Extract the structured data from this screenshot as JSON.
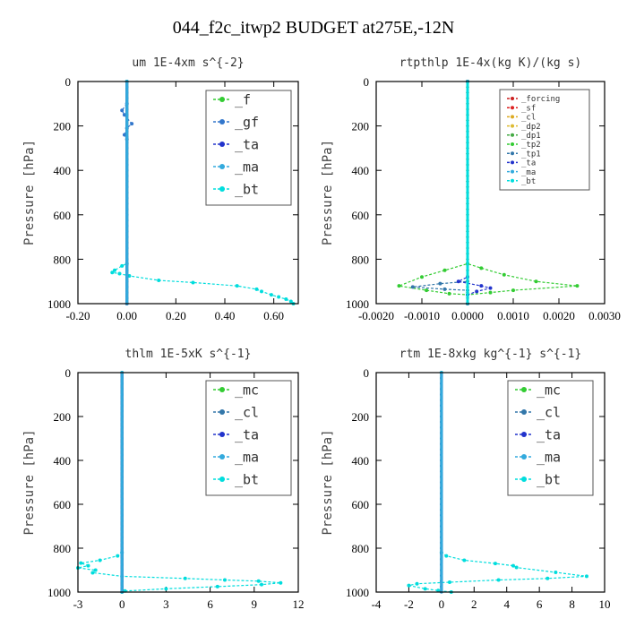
{
  "figure_title": "044_f2c_itwp2  BUDGET at275E,-12N",
  "chart_data": [
    {
      "type": "line",
      "title": "um   1E-4xm s^{-2}",
      "ylabel": "Pressure [hPa]",
      "xlim": [
        -0.2,
        0.7
      ],
      "ylim": [
        0,
        1000
      ],
      "y_inverted": true,
      "xticks": [
        -0.2,
        0.0,
        0.2,
        0.4,
        0.6
      ],
      "xtick_labels": [
        "-0.20",
        "0.00",
        "0.20",
        "0.40",
        "0.60"
      ],
      "yticks": [
        0,
        200,
        400,
        600,
        800,
        1000
      ],
      "legend_position": "top-right",
      "series": [
        {
          "name": "_f",
          "color": "#33cc33",
          "values": [
            [
              0,
              0
            ],
            [
              0,
              1000
            ]
          ]
        },
        {
          "name": "_gf",
          "color": "#3377cc",
          "values": [
            [
              0,
              0
            ],
            [
              0,
              100
            ],
            [
              -0.02,
              130
            ],
            [
              -0.01,
              150
            ],
            [
              0.02,
              190
            ],
            [
              0,
              210
            ],
            [
              -0.01,
              240
            ],
            [
              0,
              260
            ],
            [
              0,
              1000
            ]
          ]
        },
        {
          "name": "_ta",
          "color": "#2233cc",
          "values": [
            [
              0,
              0
            ],
            [
              0,
              1000
            ]
          ]
        },
        {
          "name": "_ma",
          "color": "#33aadd",
          "values": [
            [
              0,
              0
            ],
            [
              0,
              1000
            ]
          ]
        },
        {
          "name": "_bt",
          "color": "#00dddd",
          "values": [
            [
              0,
              0
            ],
            [
              0,
              820
            ],
            [
              -0.02,
              830
            ],
            [
              -0.05,
              850
            ],
            [
              -0.06,
              860
            ],
            [
              -0.03,
              865
            ],
            [
              0.01,
              875
            ],
            [
              0.13,
              895
            ],
            [
              0.27,
              905
            ],
            [
              0.45,
              920
            ],
            [
              0.53,
              935
            ],
            [
              0.55,
              945
            ],
            [
              0.59,
              960
            ],
            [
              0.62,
              970
            ],
            [
              0.65,
              980
            ],
            [
              0.67,
              990
            ],
            [
              0.68,
              1000
            ]
          ]
        }
      ]
    },
    {
      "type": "line",
      "title": "rtpthlp   1E-4x(kg K)/(kg s)",
      "ylabel": "Pressure [hPa]",
      "xlim": [
        -0.002,
        0.003
      ],
      "ylim": [
        0,
        1000
      ],
      "y_inverted": true,
      "xticks": [
        -0.002,
        -0.001,
        0.0,
        0.001,
        0.002,
        0.003
      ],
      "xtick_labels": [
        "-0.0020",
        "-0.0010",
        "0.0000",
        "0.0010",
        "0.0020",
        "0.0030"
      ],
      "yticks": [
        0,
        200,
        400,
        600,
        800,
        1000
      ],
      "legend_position": "top-right",
      "series": [
        {
          "name": "_forcing",
          "color": "#cc2222",
          "values": [
            [
              0,
              0
            ],
            [
              0,
              1000
            ]
          ]
        },
        {
          "name": "_sf",
          "color": "#dd2222",
          "values": [
            [
              0,
              0
            ],
            [
              0,
              1000
            ]
          ]
        },
        {
          "name": "_cl",
          "color": "#ddaa22",
          "values": [
            [
              0,
              0
            ],
            [
              0,
              1000
            ]
          ]
        },
        {
          "name": "_dp2",
          "color": "#ddbb33",
          "values": [
            [
              0,
              0
            ],
            [
              0,
              1000
            ]
          ]
        },
        {
          "name": "_dp1",
          "color": "#44aa44",
          "values": [
            [
              0,
              0
            ],
            [
              0,
              1000
            ]
          ]
        },
        {
          "name": "_tp2",
          "color": "#33cc33",
          "values": [
            [
              0,
              0
            ],
            [
              0,
              820
            ],
            [
              -0.0005,
              850
            ],
            [
              -0.001,
              880
            ],
            [
              -0.0015,
              920
            ],
            [
              -0.0009,
              940
            ],
            [
              -0.0004,
              955
            ],
            [
              0,
              960
            ],
            [
              0.0005,
              950
            ],
            [
              0.001,
              940
            ],
            [
              0.0024,
              920
            ],
            [
              0.0015,
              900
            ],
            [
              0.0008,
              870
            ],
            [
              0.0003,
              840
            ],
            [
              0,
              820
            ]
          ]
        },
        {
          "name": "_tp1",
          "color": "#3377aa",
          "values": [
            [
              0,
              0
            ],
            [
              0,
              900
            ],
            [
              -0.0006,
              910
            ],
            [
              -0.0012,
              925
            ],
            [
              -0.0005,
              935
            ],
            [
              0,
              940
            ],
            [
              0,
              1000
            ]
          ]
        },
        {
          "name": "_ta",
          "color": "#2233cc",
          "values": [
            [
              0,
              0
            ],
            [
              0,
              880
            ],
            [
              -0.0002,
              900
            ],
            [
              0.0003,
              920
            ],
            [
              0.0005,
              930
            ],
            [
              0.0002,
              945
            ],
            [
              0,
              960
            ],
            [
              0,
              1000
            ]
          ]
        },
        {
          "name": "_ma",
          "color": "#33aadd",
          "values": [
            [
              0,
              0
            ],
            [
              0,
              1000
            ]
          ]
        },
        {
          "name": "_bt",
          "color": "#00dddd",
          "values": [
            [
              0,
              0
            ],
            [
              0,
              1000
            ]
          ]
        }
      ]
    },
    {
      "type": "line",
      "title": "thlm   1E-5xK s^{-1}",
      "ylabel": "Pressure [hPa]",
      "xlim": [
        -3,
        12
      ],
      "ylim": [
        0,
        1000
      ],
      "y_inverted": true,
      "xticks": [
        -3,
        0,
        3,
        6,
        9,
        12
      ],
      "xtick_labels": [
        "-3",
        "0",
        "3",
        "6",
        "9",
        "12"
      ],
      "yticks": [
        0,
        200,
        400,
        600,
        800,
        1000
      ],
      "legend_position": "top-right",
      "series": [
        {
          "name": "_mc",
          "color": "#33cc33",
          "values": [
            [
              0,
              0
            ],
            [
              0,
              1000
            ]
          ]
        },
        {
          "name": "_cl",
          "color": "#3377aa",
          "values": [
            [
              0,
              0
            ],
            [
              0,
              1000
            ]
          ]
        },
        {
          "name": "_ta",
          "color": "#2233cc",
          "values": [
            [
              0,
              0
            ],
            [
              0,
              1000
            ]
          ]
        },
        {
          "name": "_ma",
          "color": "#33aadd",
          "values": [
            [
              0,
              0
            ],
            [
              0,
              1000
            ]
          ]
        },
        {
          "name": "_bt",
          "color": "#00dddd",
          "values": [
            [
              0,
              0
            ],
            [
              0,
              820
            ],
            [
              -0.3,
              835
            ],
            [
              -1.5,
              855
            ],
            [
              -2.8,
              868
            ],
            [
              -2.3,
              880
            ],
            [
              -3,
              890
            ],
            [
              -1.8,
              900
            ],
            [
              -2,
              912
            ],
            [
              0,
              928
            ],
            [
              4.3,
              938
            ],
            [
              7,
              945
            ],
            [
              9.3,
              950
            ],
            [
              10.8,
              958
            ],
            [
              9.5,
              966
            ],
            [
              6.5,
              975
            ],
            [
              3,
              985
            ],
            [
              0.2,
              995
            ],
            [
              0,
              1000
            ]
          ]
        }
      ]
    },
    {
      "type": "line",
      "title": "rtm   1E-8xkg kg^{-1} s^{-1}",
      "ylabel": "Pressure [hPa]",
      "xlim": [
        -4,
        10
      ],
      "ylim": [
        0,
        1000
      ],
      "y_inverted": true,
      "xticks": [
        -4,
        -2,
        0,
        2,
        4,
        6,
        8,
        10
      ],
      "xtick_labels": [
        "-4",
        "-2",
        "0",
        "2",
        "4",
        "6",
        "8",
        "10"
      ],
      "yticks": [
        0,
        200,
        400,
        600,
        800,
        1000
      ],
      "legend_position": "top-right",
      "series": [
        {
          "name": "_mc",
          "color": "#33cc33",
          "values": [
            [
              0,
              0
            ],
            [
              0,
              1000
            ]
          ]
        },
        {
          "name": "_cl",
          "color": "#3377aa",
          "values": [
            [
              0,
              0
            ],
            [
              0,
              1000
            ]
          ]
        },
        {
          "name": "_ta",
          "color": "#2233cc",
          "values": [
            [
              0,
              0
            ],
            [
              0,
              1000
            ]
          ]
        },
        {
          "name": "_ma",
          "color": "#33aadd",
          "values": [
            [
              0,
              0
            ],
            [
              0,
              1000
            ]
          ]
        },
        {
          "name": "_bt",
          "color": "#00dddd",
          "values": [
            [
              0,
              0
            ],
            [
              0,
              820
            ],
            [
              0.3,
              835
            ],
            [
              1.4,
              855
            ],
            [
              3.3,
              870
            ],
            [
              4.4,
              880
            ],
            [
              4.6,
              888
            ],
            [
              7,
              910
            ],
            [
              8.9,
              928
            ],
            [
              6.5,
              938
            ],
            [
              3.5,
              945
            ],
            [
              0.5,
              955
            ],
            [
              -1.5,
              962
            ],
            [
              -2,
              970
            ],
            [
              -1,
              985
            ],
            [
              -0.2,
              993
            ],
            [
              0.6,
              1000
            ]
          ]
        }
      ]
    }
  ]
}
